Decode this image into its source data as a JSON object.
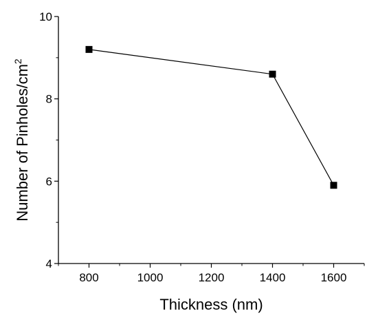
{
  "chart_data": {
    "type": "line",
    "xlabel": "Thickness (nm)",
    "ylabel_main": "Number of Pinholes/cm",
    "ylabel_sup": "2",
    "x": [
      800,
      1400,
      1600
    ],
    "y": [
      9.2,
      8.6,
      5.9
    ],
    "xlim": [
      700,
      1700
    ],
    "ylim": [
      4,
      10
    ],
    "x_ticks": [
      800,
      1000,
      1200,
      1400,
      1600
    ],
    "x_tick_labels": [
      "800",
      "1000",
      "1200",
      "1400",
      "1600"
    ],
    "y_ticks": [
      4,
      6,
      8,
      10
    ],
    "y_tick_labels": [
      "4",
      "6",
      "8",
      "10"
    ],
    "marker": "square",
    "grid": false,
    "legend": "none",
    "colors": {
      "line": "#000000",
      "marker": "#000000",
      "axis": "#000000"
    }
  }
}
